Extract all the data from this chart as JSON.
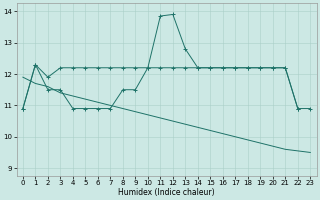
{
  "x_values": [
    0,
    1,
    2,
    3,
    4,
    5,
    6,
    7,
    8,
    9,
    10,
    11,
    12,
    13,
    14,
    15,
    16,
    17,
    18,
    19,
    20,
    21,
    22,
    23
  ],
  "line1": [
    10.9,
    12.3,
    11.9,
    12.2,
    12.2,
    12.2,
    12.2,
    12.2,
    12.2,
    12.2,
    12.2,
    12.2,
    12.2,
    12.2,
    12.2,
    12.2,
    12.2,
    12.2,
    12.2,
    12.2,
    12.2,
    12.2,
    10.9,
    10.9
  ],
  "line1_has_marker": true,
  "line2": [
    10.9,
    12.3,
    11.5,
    11.5,
    10.9,
    10.9,
    10.9,
    10.9,
    11.5,
    11.5,
    12.2,
    13.85,
    13.9,
    12.8,
    12.2,
    12.2,
    12.2,
    12.2,
    12.2,
    12.2,
    12.2,
    12.2,
    10.9,
    null
  ],
  "line2_has_marker": true,
  "line3": [
    11.9,
    11.7,
    11.6,
    11.4,
    11.3,
    11.2,
    11.1,
    11.0,
    10.9,
    10.8,
    10.7,
    10.6,
    10.5,
    10.4,
    10.3,
    10.2,
    10.1,
    10.0,
    9.9,
    9.8,
    9.7,
    9.6,
    9.55,
    9.5
  ],
  "line3_has_marker": false,
  "color": "#1e7268",
  "bg_color": "#cce8e4",
  "grid_color": "#aacfc8",
  "xlabel": "Humidex (Indice chaleur)",
  "ylim": [
    8.75,
    14.25
  ],
  "xlim": [
    -0.5,
    23.5
  ],
  "yticks": [
    9,
    10,
    11,
    12,
    13,
    14
  ],
  "xticks": [
    0,
    1,
    2,
    3,
    4,
    5,
    6,
    7,
    8,
    9,
    10,
    11,
    12,
    13,
    14,
    15,
    16,
    17,
    18,
    19,
    20,
    21,
    22,
    23
  ]
}
